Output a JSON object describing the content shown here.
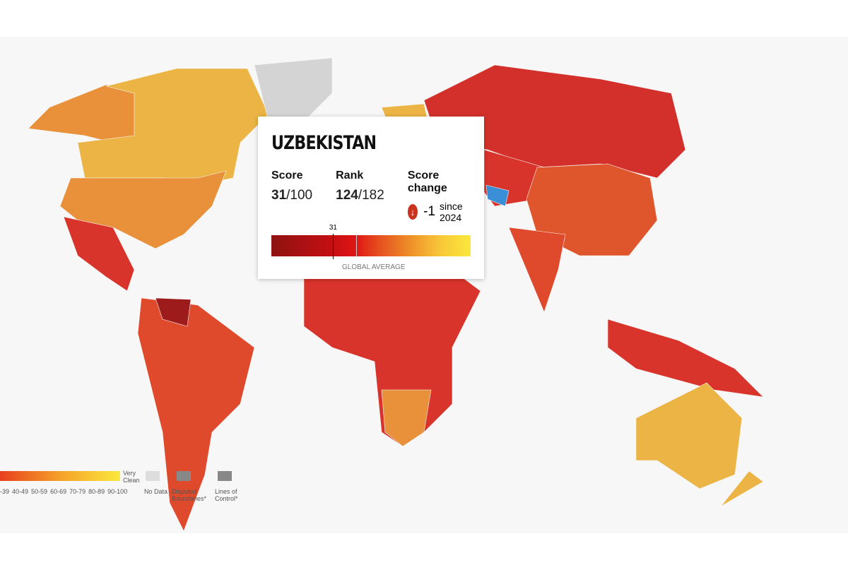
{
  "tooltip": {
    "country": "UZBEKISTAN",
    "score_label": "Score",
    "score": "31",
    "score_max": "/100",
    "rank_label": "Rank",
    "rank": "124",
    "rank_max": "/182",
    "change_label": "Score change",
    "change": "-1",
    "change_icon": "arrow-down-icon",
    "since": "since 2024",
    "marker_value": "31",
    "global_average_label": "GLOBAL AVERAGE",
    "score_fraction": 0.31
  },
  "legend": {
    "ranges": [
      "-39",
      "40-49",
      "50-59",
      "60-69",
      "70-79",
      "80-89",
      "90-100"
    ],
    "very_clean": "Very Clean",
    "no_data": "No Data",
    "disputed": "Disputed Boundaries*",
    "lines_of_control": "Lines of Control*"
  },
  "colors": {
    "very_corrupt": "#8e1212",
    "mid_red": "#d9342b",
    "orange": "#e8913a",
    "yellow": "#ecb444",
    "no_data": "#d4d4d4",
    "highlight": "#3b8fd6"
  }
}
